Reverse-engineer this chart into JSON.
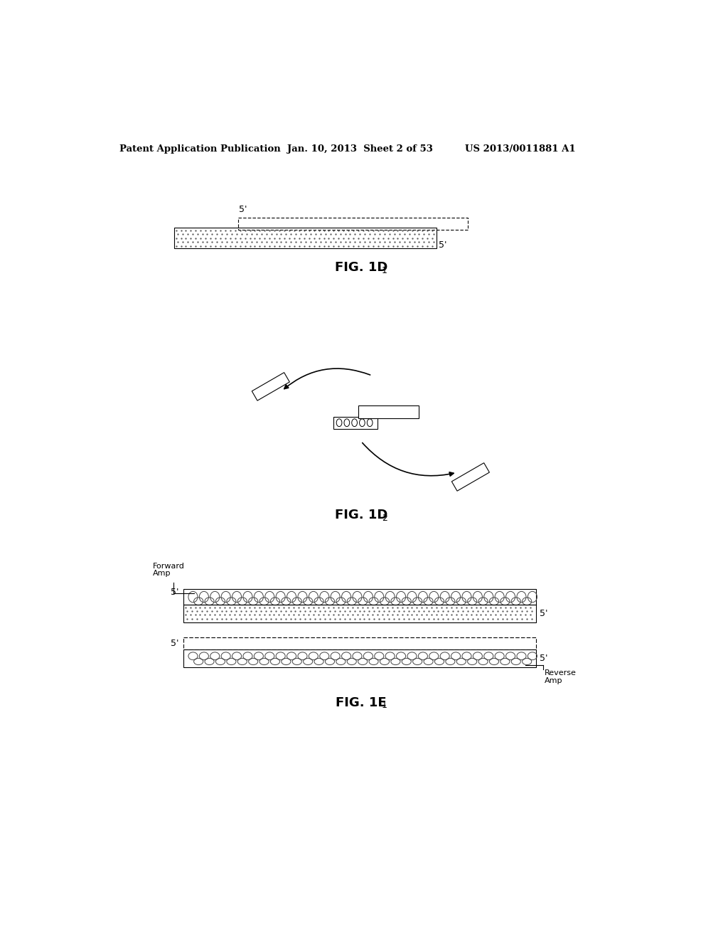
{
  "bg_color": "#ffffff",
  "header_text": "Patent Application Publication",
  "header_date": "Jan. 10, 2013  Sheet 2 of 53",
  "header_patent": "US 2013/0011881 A1",
  "fig1d1_label": "FIG. 1D",
  "fig1d1_sub": "1",
  "fig1d2_label": "FIG. 1D",
  "fig1d2_sub": "2",
  "fig1e1_label": "FIG. 1E",
  "fig1e1_sub": "1"
}
